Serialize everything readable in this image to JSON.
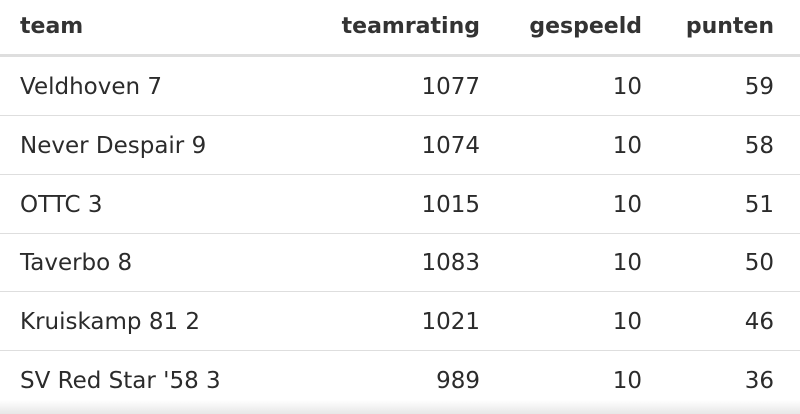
{
  "table": {
    "header": [
      "team",
      "teamrating",
      "gespeeld",
      "punten"
    ],
    "rows": [
      [
        "Veldhoven 7",
        1077,
        10,
        59
      ],
      [
        "Never Despair 9",
        1074,
        10,
        58
      ],
      [
        "OTTC 3",
        1015,
        10,
        51
      ],
      [
        "Taverbo 8",
        1083,
        10,
        50
      ],
      [
        "Kruiskamp 81 2",
        1021,
        10,
        46
      ],
      [
        "SV Red Star '58 3",
        989,
        10,
        36
      ]
    ]
  }
}
